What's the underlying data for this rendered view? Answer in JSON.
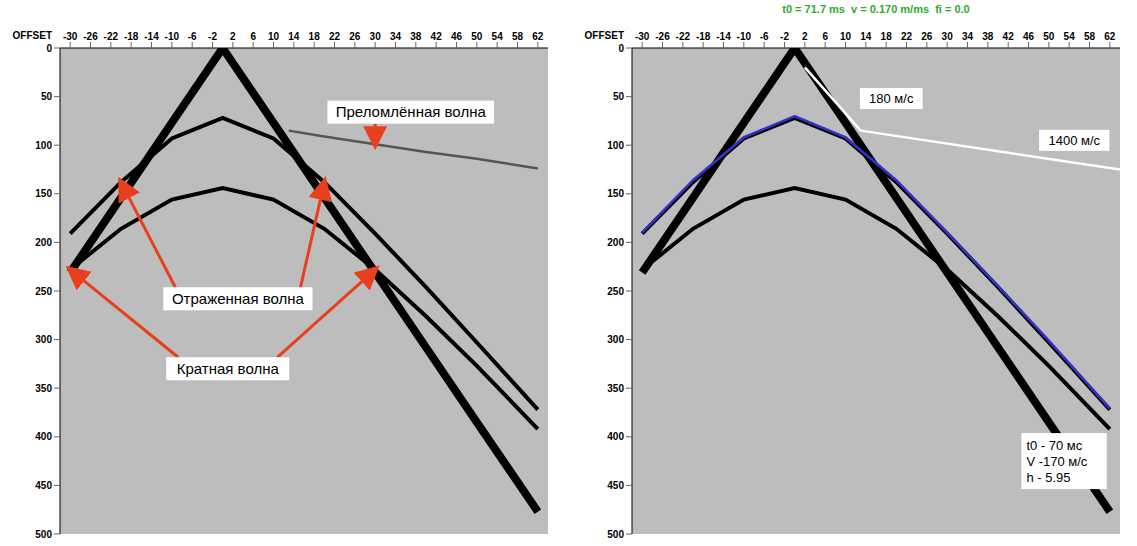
{
  "chart_data": [
    {
      "type": "line",
      "xlabel": "OFFSET",
      "xlim": [
        -32,
        64
      ],
      "xticks": [
        -30,
        -26,
        -22,
        -18,
        -14,
        -10,
        -6,
        -2,
        2,
        6,
        10,
        14,
        18,
        22,
        26,
        30,
        34,
        38,
        42,
        46,
        50,
        54,
        58,
        62
      ],
      "ylim": [
        0,
        500
      ],
      "yticks": [
        0,
        50,
        100,
        150,
        200,
        250,
        300,
        350,
        400,
        450,
        500
      ],
      "grid": false,
      "series": [
        {
          "color": "#000000",
          "x": [
            -30,
            -20,
            -10,
            0,
            10,
            20,
            30,
            40,
            50,
            62
          ],
          "values": [
            231,
            154,
            77,
            0,
            77,
            154,
            231,
            308,
            385,
            477
          ]
        },
        {
          "name": "Отраженная волна",
          "color": "#000000",
          "x": [
            -30,
            -20,
            -10,
            0,
            10,
            20,
            30,
            40,
            50,
            62
          ],
          "values": [
            191,
            138,
            93,
            72,
            93,
            138,
            191,
            246,
            303,
            372
          ]
        },
        {
          "name": "Кратная волна",
          "color": "#000000",
          "x": [
            -30,
            -20,
            -10,
            0,
            10,
            20,
            30,
            40,
            50,
            62
          ],
          "values": [
            228,
            186,
            156,
            144,
            156,
            186,
            228,
            276,
            327,
            392
          ]
        },
        {
          "name": "Преломлённая волна",
          "color": "#555555",
          "x": [
            13,
            20,
            30,
            40,
            50,
            62
          ],
          "values": [
            85,
            91,
            99,
            107,
            114,
            124
          ]
        }
      ]
    },
    {
      "type": "line",
      "title": "t0 = 71.7 ms  v = 0.170 m/ms  fi = 0.0",
      "xlabel": "OFFSET",
      "xlim": [
        -32,
        64
      ],
      "xticks": [
        -30,
        -26,
        -22,
        -18,
        -14,
        -10,
        -6,
        -2,
        2,
        6,
        10,
        14,
        18,
        22,
        26,
        30,
        34,
        38,
        42,
        46,
        50,
        54,
        58,
        62
      ],
      "ylim": [
        0,
        500
      ],
      "yticks": [
        0,
        50,
        100,
        150,
        200,
        250,
        300,
        350,
        400,
        450,
        500
      ],
      "grid": false,
      "series": [
        {
          "color": "#000000",
          "x": [
            -30,
            -20,
            -10,
            0,
            10,
            20,
            30,
            40,
            50,
            62
          ],
          "values": [
            231,
            154,
            77,
            0,
            77,
            154,
            231,
            308,
            385,
            477
          ]
        },
        {
          "color": "#000000",
          "x": [
            -30,
            -20,
            -10,
            0,
            10,
            20,
            30,
            40,
            50,
            62
          ],
          "values": [
            191,
            138,
            93,
            72,
            93,
            138,
            191,
            246,
            303,
            372
          ]
        },
        {
          "color": "#000000",
          "x": [
            -30,
            -20,
            -10,
            0,
            10,
            20,
            30,
            40,
            50,
            62
          ],
          "values": [
            228,
            186,
            156,
            144,
            156,
            186,
            228,
            276,
            327,
            392
          ]
        },
        {
          "color": "#3333cc",
          "x": [
            -30,
            -20,
            -10,
            0,
            10,
            20,
            30,
            40,
            50,
            62
          ],
          "values": [
            190,
            136,
            92,
            70,
            92,
            136,
            190,
            245,
            301,
            371
          ]
        },
        {
          "name": "180 м/с",
          "color": "#ffffff",
          "x": [
            2,
            13
          ],
          "values": [
            20,
            85
          ]
        },
        {
          "name": "1400 м/с",
          "color": "#ffffff",
          "x": [
            13,
            64
          ],
          "values": [
            85,
            125
          ]
        }
      ],
      "annotations": [
        "t0 - 70 мс",
        "V -170 м/с",
        "h - 5.95"
      ]
    }
  ]
}
